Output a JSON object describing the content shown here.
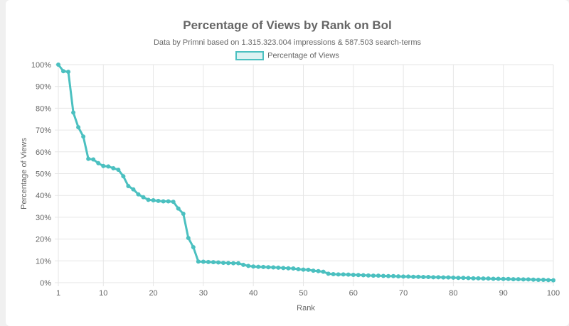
{
  "chart_data": {
    "type": "line",
    "title": "Percentage of Views by Rank on Bol",
    "subtitle": "Data by Primni based on 1.315.323.004 impressions & 587.503 search-terms",
    "xlabel": "Rank",
    "ylabel": "Percentage of Views",
    "xlim": [
      1,
      100
    ],
    "ylim": [
      0,
      100
    ],
    "x_ticks": [
      "1",
      "10",
      "20",
      "30",
      "40",
      "50",
      "60",
      "70",
      "80",
      "90",
      "100"
    ],
    "y_ticks": [
      "0%",
      "10%",
      "20%",
      "30%",
      "40%",
      "50%",
      "60%",
      "70%",
      "80%",
      "90%",
      "100%"
    ],
    "grid": true,
    "legend": "top",
    "color": "#4bc0c0",
    "series": [
      {
        "name": "Percentage of Views",
        "values": [
          100,
          97,
          96.7,
          78,
          71.3,
          67,
          56.8,
          56.5,
          54.8,
          53.5,
          53.3,
          52.5,
          51.8,
          48.8,
          44.3,
          42.8,
          40.5,
          39.2,
          38,
          37.8,
          37.5,
          37.3,
          37.3,
          37.1,
          34,
          31.6,
          20.5,
          16.3,
          9.7,
          9.6,
          9.5,
          9.4,
          9.3,
          9.1,
          9,
          8.9,
          8.9,
          8.2,
          7.7,
          7.4,
          7.3,
          7.2,
          7.1,
          7,
          6.9,
          6.7,
          6.6,
          6.5,
          6.2,
          6,
          5.9,
          5.5,
          5.3,
          5,
          4.1,
          3.9,
          3.8,
          3.8,
          3.7,
          3.6,
          3.5,
          3.4,
          3.3,
          3.2,
          3.2,
          3.1,
          3.0,
          3.0,
          2.9,
          2.8,
          2.8,
          2.7,
          2.7,
          2.6,
          2.6,
          2.5,
          2.5,
          2.4,
          2.4,
          2.3,
          2.2,
          2.2,
          2.1,
          2.0,
          2.0,
          1.9,
          1.9,
          1.8,
          1.8,
          1.7,
          1.7,
          1.6,
          1.6,
          1.5,
          1.5,
          1.4,
          1.3,
          1.3,
          1.2,
          1.1
        ]
      }
    ]
  }
}
